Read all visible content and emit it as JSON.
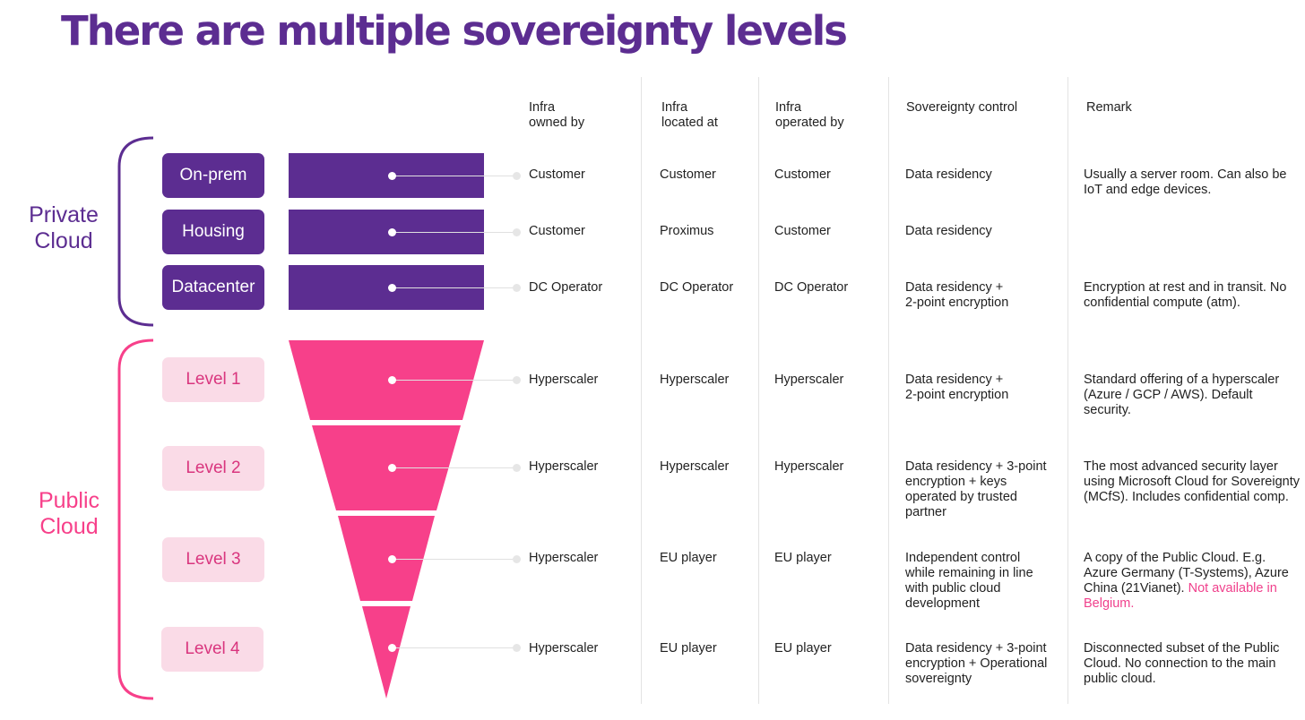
{
  "title": "There are multiple sovereignty levels",
  "colors": {
    "purple": "#5c2d91",
    "pink": "#f7408a",
    "pink_light": "#fadbe7",
    "pink_text": "#d9357e",
    "highlight": "#f0408c"
  },
  "columns": {
    "owned_by": "Infra\nowned by",
    "located_at": "Infra\nlocated at",
    "operated_by": "Infra\noperated by",
    "control": "Sovereignty control",
    "remark": "Remark"
  },
  "groups": {
    "private": "Private\nCloud",
    "public": "Public\nCloud"
  },
  "rows": [
    {
      "label": "On-prem",
      "owned": "Customer",
      "located": "Customer",
      "operated": "Customer",
      "control": "Data residency",
      "remark": "Usually a server room. Can also be IoT and edge devices.",
      "remark_highlight": ""
    },
    {
      "label": "Housing",
      "owned": "Customer",
      "located": "Proximus",
      "operated": "Customer",
      "control": "Data residency",
      "remark": "",
      "remark_highlight": ""
    },
    {
      "label": "Datacenter",
      "owned": "DC Operator",
      "located": "DC Operator",
      "operated": "DC Operator",
      "control": "Data residency +\n2-point encryption",
      "remark": "Encryption at rest and in transit. No confidential compute (atm).",
      "remark_highlight": ""
    },
    {
      "label": "Level 1",
      "owned": "Hyperscaler",
      "located": "Hyperscaler",
      "operated": "Hyperscaler",
      "control": "Data residency +\n2-point encryption",
      "remark": "Standard offering of a hyperscaler (Azure / GCP / AWS). Default security.",
      "remark_highlight": ""
    },
    {
      "label": "Level 2",
      "owned": "Hyperscaler",
      "located": "Hyperscaler",
      "operated": "Hyperscaler",
      "control": "Data residency + 3-point\nencryption + keys\noperated by trusted\npartner",
      "remark": "The most advanced security layer using Microsoft Cloud for Sovereignty (MCfS). Includes confidential comp.",
      "remark_highlight": ""
    },
    {
      "label": "Level 3",
      "owned": "Hyperscaler",
      "located": "EU player",
      "operated": "EU player",
      "control": "Independent control\nwhile remaining in line\nwith public cloud\ndevelopment",
      "remark": "A copy of the Public Cloud. E.g. Azure Germany (T-Systems), Azure China (21Vianet). ",
      "remark_highlight": "Not available in Belgium."
    },
    {
      "label": "Level 4",
      "owned": "Hyperscaler",
      "located": "EU player",
      "operated": "EU player",
      "control": "Data residency + 3-point\nencryption + Operational\nsovereignty",
      "remark": "Disconnected subset of the Public Cloud. No connection to the main public cloud.",
      "remark_highlight": ""
    }
  ]
}
